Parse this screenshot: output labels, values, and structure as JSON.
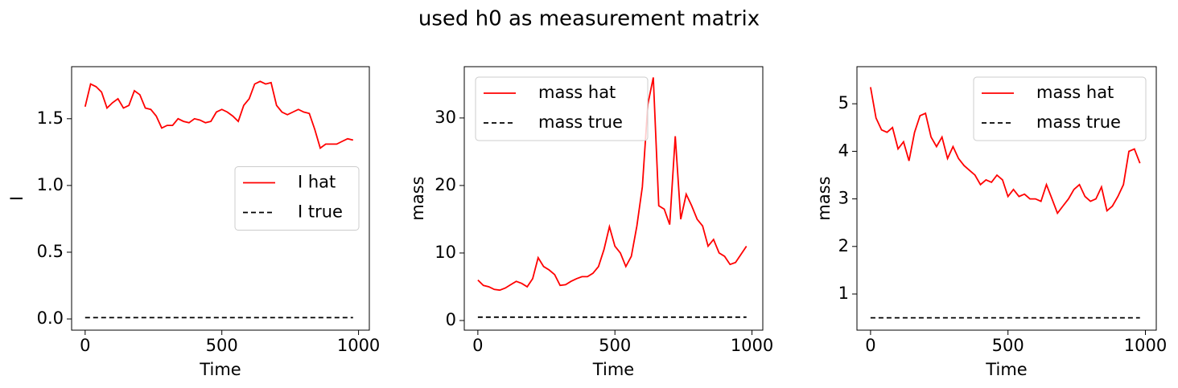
{
  "title": "used h0 as measurement matrix",
  "chart_data": [
    {
      "type": "line",
      "xlabel": "Time",
      "ylabel": "I",
      "x": [
        0,
        20,
        40,
        60,
        80,
        100,
        120,
        140,
        160,
        180,
        200,
        220,
        240,
        260,
        280,
        300,
        320,
        340,
        360,
        380,
        400,
        420,
        440,
        460,
        480,
        500,
        520,
        540,
        560,
        580,
        600,
        620,
        640,
        660,
        680,
        700,
        720,
        740,
        760,
        780,
        800,
        820,
        840,
        860,
        880,
        900,
        920,
        940,
        960,
        980
      ],
      "series": [
        {
          "name": "I hat",
          "color": "#ff0000",
          "dashed": false,
          "values": [
            1.59,
            1.76,
            1.74,
            1.7,
            1.58,
            1.62,
            1.65,
            1.58,
            1.6,
            1.71,
            1.68,
            1.58,
            1.57,
            1.52,
            1.43,
            1.45,
            1.45,
            1.5,
            1.48,
            1.47,
            1.5,
            1.49,
            1.47,
            1.48,
            1.55,
            1.57,
            1.55,
            1.52,
            1.48,
            1.6,
            1.65,
            1.76,
            1.78,
            1.76,
            1.77,
            1.6,
            1.55,
            1.53,
            1.55,
            1.57,
            1.55,
            1.54,
            1.42,
            1.28,
            1.31,
            1.31,
            1.31,
            1.33,
            1.35,
            1.34
          ]
        },
        {
          "name": "I true",
          "color": "#000000",
          "dashed": true,
          "values": [
            0.01,
            0.01,
            0.01,
            0.01,
            0.01,
            0.01,
            0.01,
            0.01,
            0.01,
            0.01,
            0.01,
            0.01,
            0.01,
            0.01,
            0.01,
            0.01,
            0.01,
            0.01,
            0.01,
            0.01,
            0.01,
            0.01,
            0.01,
            0.01,
            0.01,
            0.01,
            0.01,
            0.01,
            0.01,
            0.01,
            0.01,
            0.01,
            0.01,
            0.01,
            0.01,
            0.01,
            0.01,
            0.01,
            0.01,
            0.01,
            0.01,
            0.01,
            0.01,
            0.01,
            0.01,
            0.01,
            0.01,
            0.01,
            0.01,
            0.01
          ]
        }
      ],
      "xlim": [
        -49.5,
        1039.5
      ],
      "xticks": [
        0,
        500,
        1000
      ],
      "ylim": [
        -0.084,
        1.89
      ],
      "yticks": [
        {
          "value": 0,
          "label": "0.0"
        },
        0.5,
        {
          "value": 1,
          "label": "1.0"
        },
        1.5
      ],
      "legend": "center right"
    },
    {
      "type": "line",
      "xlabel": "Time",
      "ylabel": "mass",
      "x": [
        0,
        20,
        40,
        60,
        80,
        100,
        120,
        140,
        160,
        180,
        200,
        220,
        240,
        260,
        280,
        300,
        320,
        340,
        360,
        380,
        400,
        420,
        440,
        460,
        480,
        500,
        520,
        540,
        560,
        580,
        600,
        620,
        640,
        660,
        680,
        700,
        720,
        740,
        760,
        780,
        800,
        820,
        840,
        860,
        880,
        900,
        920,
        940,
        960,
        980
      ],
      "series": [
        {
          "name": "mass hat",
          "color": "#ff0000",
          "dashed": false,
          "values": [
            6.0,
            5.2,
            5.0,
            4.6,
            4.5,
            4.8,
            5.3,
            5.8,
            5.5,
            5.0,
            6.2,
            9.3,
            8.0,
            7.5,
            6.8,
            5.2,
            5.3,
            5.8,
            6.2,
            6.5,
            6.5,
            7.0,
            8.0,
            10.5,
            13.9,
            11.0,
            10.0,
            8.0,
            9.5,
            14.0,
            19.8,
            32.0,
            36.0,
            17.0,
            16.5,
            14.2,
            27.3,
            15.0,
            18.7,
            17.0,
            15.0,
            14.0,
            11.0,
            12.0,
            10.0,
            9.5,
            8.3,
            8.6,
            9.8,
            11.0
          ]
        },
        {
          "name": "mass true",
          "color": "#000000",
          "dashed": true,
          "values": [
            0.5,
            0.5,
            0.5,
            0.5,
            0.5,
            0.5,
            0.5,
            0.5,
            0.5,
            0.5,
            0.5,
            0.5,
            0.5,
            0.5,
            0.5,
            0.5,
            0.5,
            0.5,
            0.5,
            0.5,
            0.5,
            0.5,
            0.5,
            0.5,
            0.5,
            0.5,
            0.5,
            0.5,
            0.5,
            0.5,
            0.5,
            0.5,
            0.5,
            0.5,
            0.5,
            0.5,
            0.5,
            0.5,
            0.5,
            0.5,
            0.5,
            0.5,
            0.5,
            0.5,
            0.5,
            0.5,
            0.5,
            0.5,
            0.5,
            0.5
          ]
        }
      ],
      "xlim": [
        -49.5,
        1039.5
      ],
      "xticks": [
        0,
        500,
        1000
      ],
      "ylim": [
        -1.43,
        37.6
      ],
      "yticks": [
        0,
        10,
        20,
        30
      ],
      "legend": "upper left"
    },
    {
      "type": "line",
      "xlabel": "Time",
      "ylabel": "mass",
      "x": [
        0,
        20,
        40,
        60,
        80,
        100,
        120,
        140,
        160,
        180,
        200,
        220,
        240,
        260,
        280,
        300,
        320,
        340,
        360,
        380,
        400,
        420,
        440,
        460,
        480,
        500,
        520,
        540,
        560,
        580,
        600,
        620,
        640,
        660,
        680,
        700,
        720,
        740,
        760,
        780,
        800,
        820,
        840,
        860,
        880,
        900,
        920,
        940,
        960,
        980
      ],
      "series": [
        {
          "name": "mass hat",
          "color": "#ff0000",
          "dashed": false,
          "values": [
            5.35,
            4.7,
            4.45,
            4.4,
            4.5,
            4.05,
            4.2,
            3.8,
            4.4,
            4.75,
            4.8,
            4.3,
            4.1,
            4.3,
            3.85,
            4.1,
            3.85,
            3.7,
            3.6,
            3.5,
            3.3,
            3.4,
            3.35,
            3.5,
            3.4,
            3.05,
            3.2,
            3.05,
            3.1,
            3.0,
            3.0,
            2.95,
            3.3,
            3.0,
            2.7,
            2.85,
            3.0,
            3.2,
            3.3,
            3.05,
            2.95,
            3.0,
            3.25,
            2.75,
            2.85,
            3.05,
            3.3,
            4.0,
            4.05,
            3.75
          ]
        },
        {
          "name": "mass true",
          "color": "#000000",
          "dashed": true,
          "values": [
            0.5,
            0.5,
            0.5,
            0.5,
            0.5,
            0.5,
            0.5,
            0.5,
            0.5,
            0.5,
            0.5,
            0.5,
            0.5,
            0.5,
            0.5,
            0.5,
            0.5,
            0.5,
            0.5,
            0.5,
            0.5,
            0.5,
            0.5,
            0.5,
            0.5,
            0.5,
            0.5,
            0.5,
            0.5,
            0.5,
            0.5,
            0.5,
            0.5,
            0.5,
            0.5,
            0.5,
            0.5,
            0.5,
            0.5,
            0.5,
            0.5,
            0.5,
            0.5,
            0.5,
            0.5,
            0.5,
            0.5,
            0.5,
            0.5,
            0.5
          ]
        }
      ],
      "xlim": [
        -49.5,
        1039.5
      ],
      "xticks": [
        0,
        500,
        1000
      ],
      "ylim": [
        0.24,
        5.78
      ],
      "yticks": [
        1,
        2,
        3,
        4,
        5
      ],
      "legend": "upper right"
    }
  ]
}
